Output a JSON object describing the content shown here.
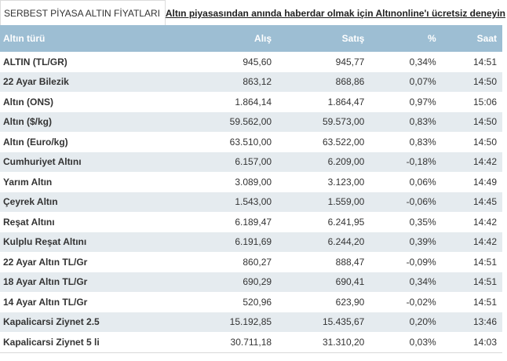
{
  "tab": {
    "title": "SERBEST PİYASA ALTIN FİYATLARI"
  },
  "promo_link": "Altın piyasasından anında haberdar olmak için Altınonline'ı ücretsiz deneyin",
  "columns": [
    "Altın türü",
    "Alış",
    "Satış",
    "%",
    "Saat"
  ],
  "rows": [
    [
      "ALTIN (TL/GR)",
      "945,60",
      "945,77",
      "0,34%",
      "14:51"
    ],
    [
      "22 Ayar Bilezik",
      "863,12",
      "868,86",
      "0,07%",
      "14:50"
    ],
    [
      "Altın (ONS)",
      "1.864,14",
      "1.864,47",
      "0,97%",
      "15:06"
    ],
    [
      "Altın ($/kg)",
      "59.562,00",
      "59.573,00",
      "0,83%",
      "14:50"
    ],
    [
      "Altın (Euro/kg)",
      "63.510,00",
      "63.522,00",
      "0,83%",
      "14:50"
    ],
    [
      "Cumhuriyet Altını",
      "6.157,00",
      "6.209,00",
      "-0,18%",
      "14:42"
    ],
    [
      "Yarım Altın",
      "3.089,00",
      "3.123,00",
      "0,06%",
      "14:49"
    ],
    [
      "Çeyrek Altın",
      "1.543,00",
      "1.559,00",
      "-0,06%",
      "14:45"
    ],
    [
      "Reşat Altını",
      "6.189,47",
      "6.241,95",
      "0,35%",
      "14:42"
    ],
    [
      "Kulplu Reşat Altını",
      "6.191,69",
      "6.244,20",
      "0,39%",
      "14:42"
    ],
    [
      "22 Ayar Altın TL/Gr",
      "860,27",
      "888,47",
      "-0,09%",
      "14:51"
    ],
    [
      "18 Ayar Altın TL/Gr",
      "690,29",
      "690,41",
      "0,34%",
      "14:51"
    ],
    [
      "14 Ayar Altın TL/Gr",
      "520,96",
      "623,90",
      "-0,02%",
      "14:51"
    ],
    [
      "Kapalicarsi Ziynet 2.5",
      "15.192,85",
      "15.435,67",
      "0,20%",
      "13:46"
    ],
    [
      "Kapalicarsi Ziynet 5 li",
      "30.711,18",
      "31.310,20",
      "0,03%",
      "14:03"
    ]
  ]
}
